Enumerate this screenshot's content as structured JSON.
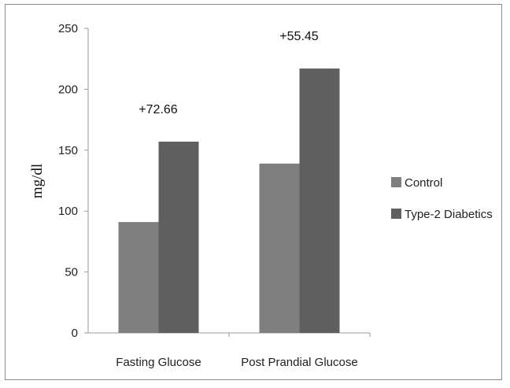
{
  "chart_data": {
    "type": "bar",
    "categories": [
      "Fasting Glucose",
      "Post Prandial Glucose"
    ],
    "series": [
      {
        "name": "Control",
        "values": [
          91,
          139
        ],
        "color": "#7f7f7f"
      },
      {
        "name": "Type-2 Diabetics",
        "values": [
          157,
          217
        ],
        "color": "#5f5f5f"
      }
    ],
    "data_labels": [
      "+72.66",
      "+55.45"
    ],
    "title": "",
    "xlabel": "",
    "ylabel": "mg/dl",
    "ylim": [
      0,
      250
    ],
    "yticks": [
      0,
      50,
      100,
      150,
      200,
      250
    ],
    "grid": false,
    "legend_position": "right"
  }
}
